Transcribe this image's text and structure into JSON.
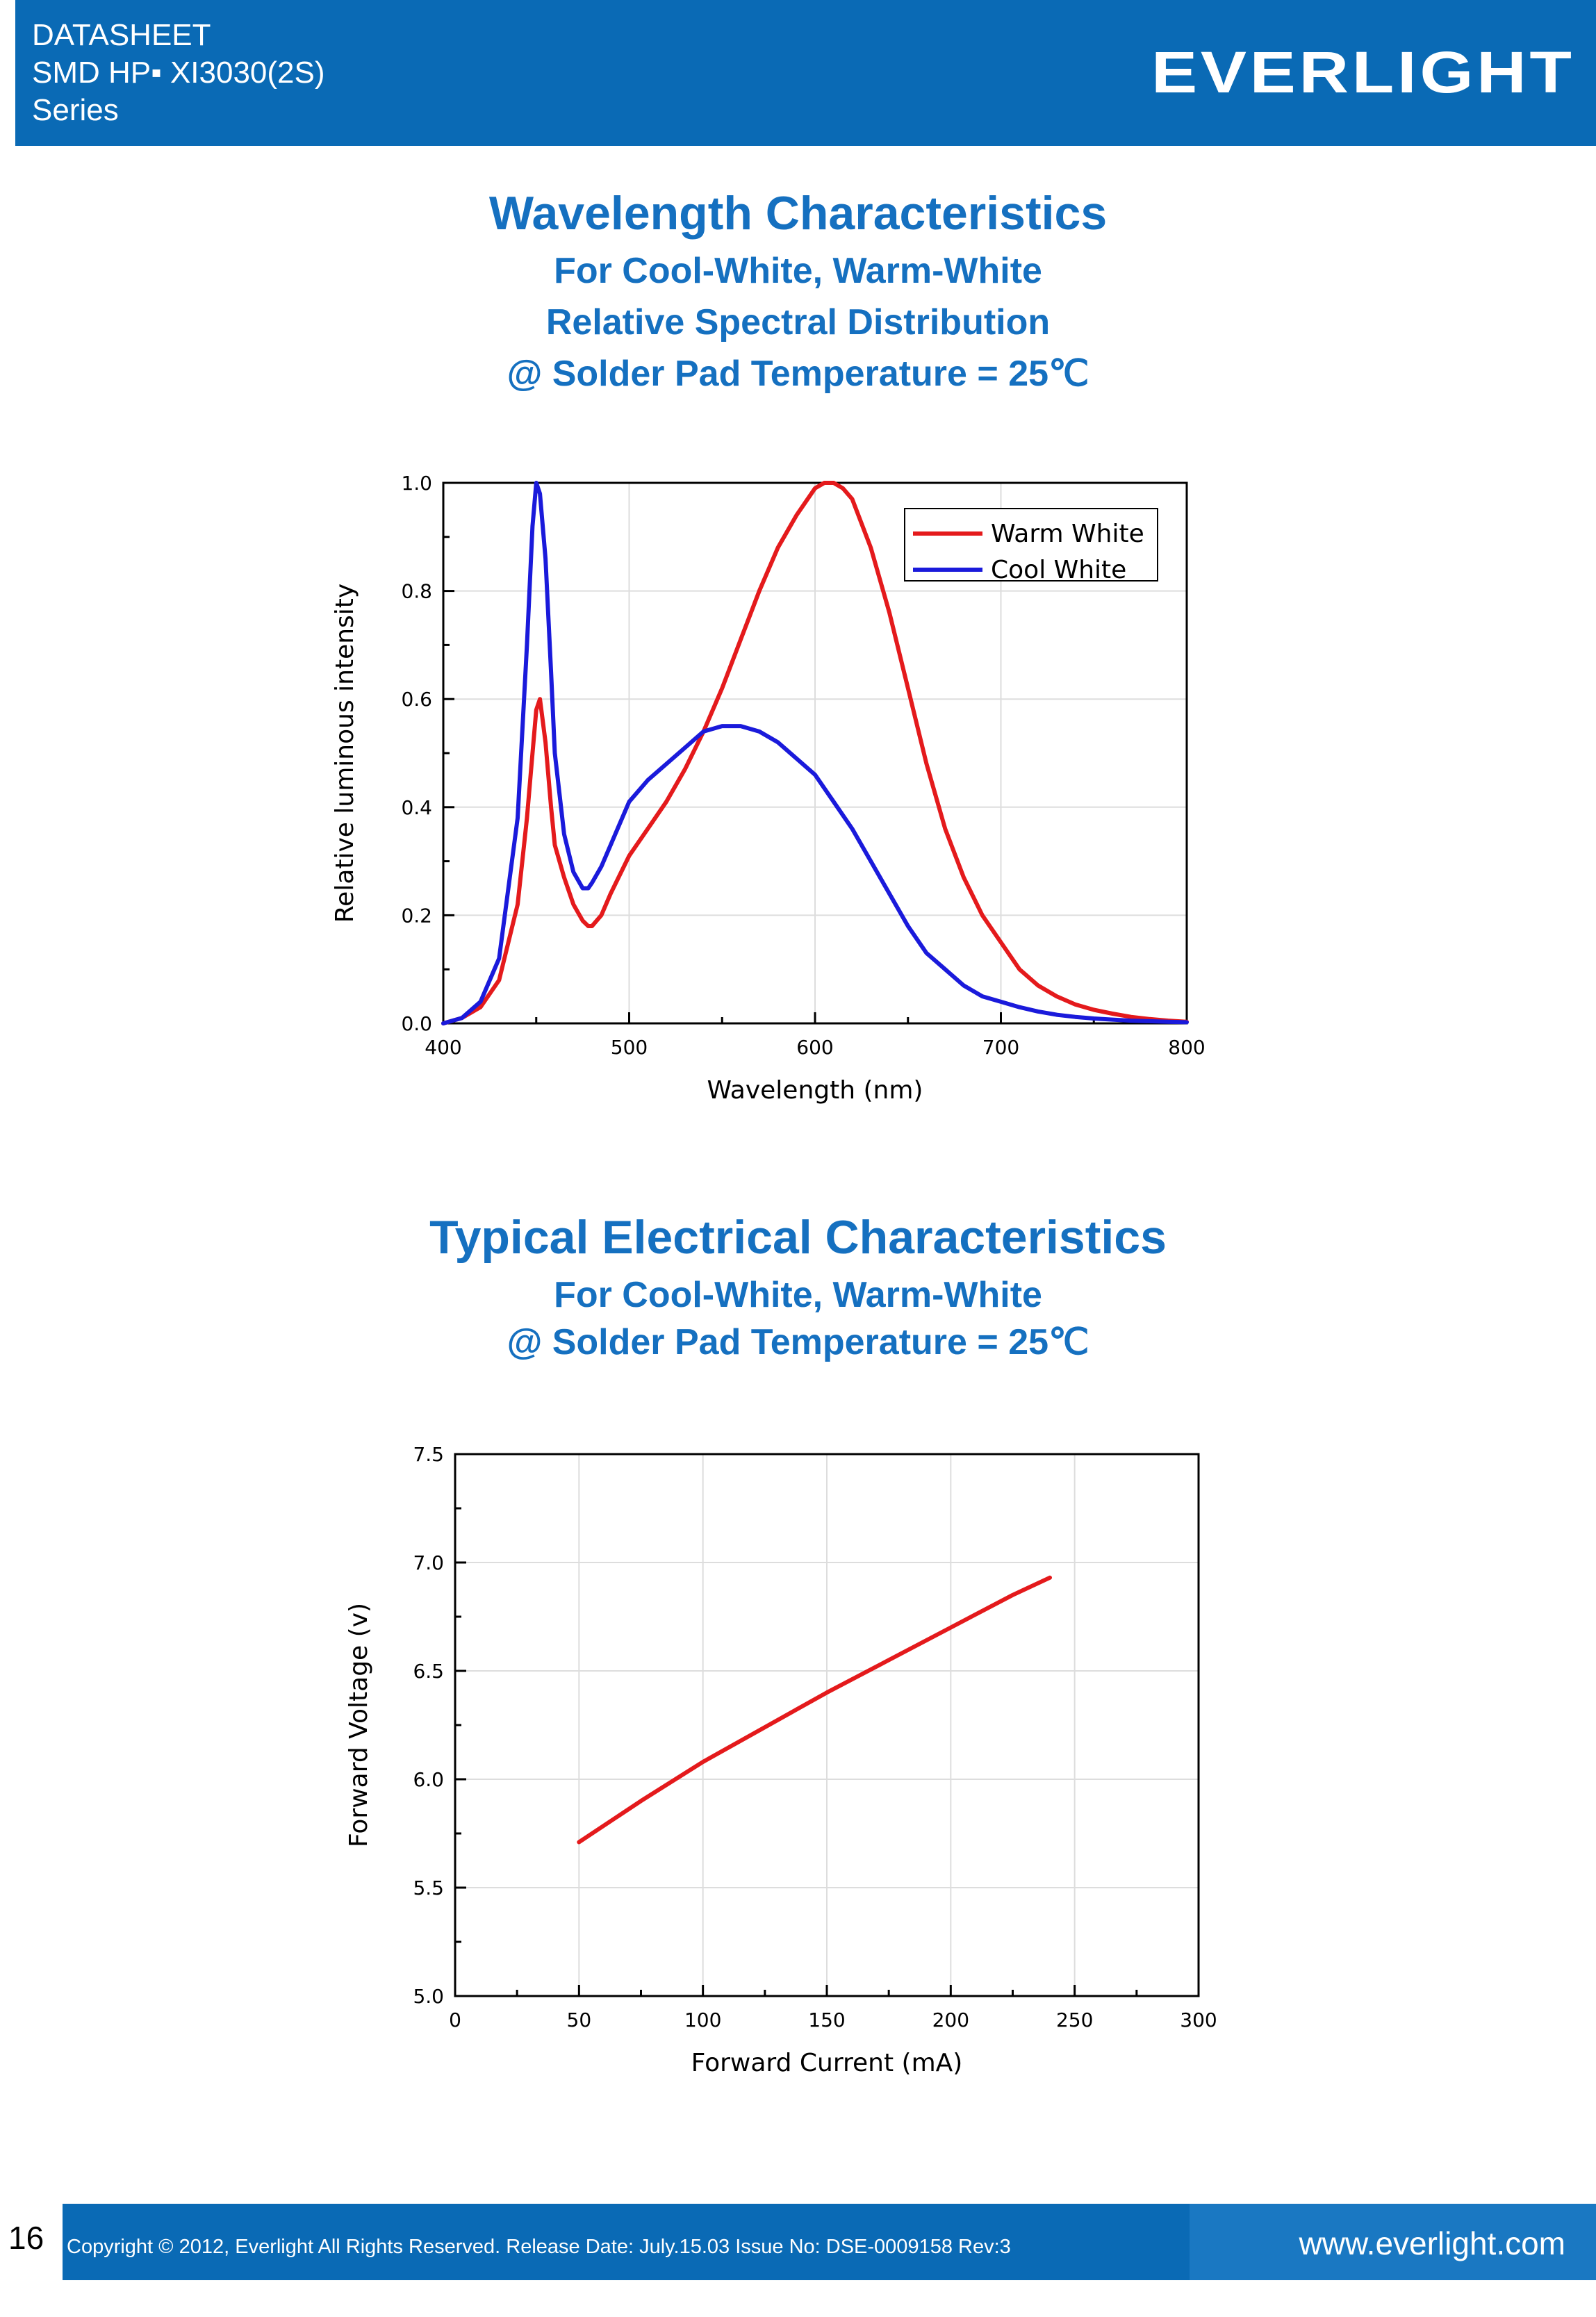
{
  "header": {
    "line1": "DATASHEET",
    "line2": "SMD HP▪ XI3030(2S)",
    "line3": "Series",
    "logo": "EVERLIGHT",
    "bg_color": "#0a6ab5"
  },
  "section1": {
    "title": "Wavelength Characteristics",
    "subtitle1": "For Cool-White, Warm-White",
    "subtitle2": "Relative Spectral Distribution",
    "subtitle3": "@ Solder Pad Temperature = 25℃"
  },
  "section2": {
    "title": "Typical Electrical Characteristics",
    "subtitle1": "For Cool-White, Warm-White",
    "subtitle2": "@ Solder Pad Temperature = 25℃"
  },
  "chart_data": [
    {
      "type": "line",
      "xlabel": "Wavelength (nm)",
      "ylabel": "Relative  luminous  intensity",
      "xlim": [
        400,
        800
      ],
      "ylim": [
        0.0,
        1.0
      ],
      "xticks": [
        "400",
        "500",
        "600",
        "700",
        "800"
      ],
      "yticks": [
        "0.0",
        "0.2",
        "0.4",
        "0.6",
        "0.8",
        "1.0"
      ],
      "grid": true,
      "legend_position": "top-right",
      "series": [
        {
          "name": "Warm White",
          "color": "#e41a1c",
          "x": [
            400,
            410,
            420,
            430,
            440,
            445,
            448,
            450,
            452,
            455,
            458,
            460,
            465,
            470,
            475,
            478,
            480,
            485,
            490,
            500,
            510,
            520,
            530,
            540,
            550,
            560,
            570,
            580,
            590,
            600,
            605,
            610,
            615,
            620,
            630,
            640,
            650,
            660,
            670,
            680,
            690,
            700,
            710,
            720,
            730,
            740,
            750,
            760,
            770,
            780,
            790,
            800
          ],
          "y": [
            0.0,
            0.01,
            0.03,
            0.08,
            0.22,
            0.38,
            0.5,
            0.58,
            0.6,
            0.52,
            0.4,
            0.33,
            0.27,
            0.22,
            0.19,
            0.18,
            0.18,
            0.2,
            0.24,
            0.31,
            0.36,
            0.41,
            0.47,
            0.54,
            0.62,
            0.71,
            0.8,
            0.88,
            0.94,
            0.99,
            1.0,
            1.0,
            0.99,
            0.97,
            0.88,
            0.76,
            0.62,
            0.48,
            0.36,
            0.27,
            0.2,
            0.15,
            0.1,
            0.07,
            0.05,
            0.035,
            0.025,
            0.018,
            0.012,
            0.008,
            0.005,
            0.003
          ]
        },
        {
          "name": "Cool  White",
          "color": "#1a1adb",
          "x": [
            400,
            410,
            420,
            430,
            440,
            445,
            448,
            450,
            452,
            455,
            458,
            460,
            465,
            470,
            475,
            478,
            480,
            485,
            490,
            500,
            510,
            520,
            530,
            540,
            550,
            560,
            570,
            580,
            590,
            600,
            610,
            620,
            630,
            640,
            650,
            660,
            670,
            680,
            690,
            700,
            710,
            720,
            730,
            740,
            750,
            760,
            770,
            780,
            790,
            800
          ],
          "y": [
            0.0,
            0.01,
            0.04,
            0.12,
            0.38,
            0.7,
            0.92,
            1.0,
            0.98,
            0.86,
            0.65,
            0.5,
            0.35,
            0.28,
            0.25,
            0.25,
            0.26,
            0.29,
            0.33,
            0.41,
            0.45,
            0.48,
            0.51,
            0.54,
            0.55,
            0.55,
            0.54,
            0.52,
            0.49,
            0.46,
            0.41,
            0.36,
            0.3,
            0.24,
            0.18,
            0.13,
            0.1,
            0.07,
            0.05,
            0.04,
            0.03,
            0.022,
            0.016,
            0.012,
            0.009,
            0.007,
            0.005,
            0.004,
            0.003,
            0.002
          ]
        }
      ]
    },
    {
      "type": "line",
      "xlabel": "Forward Current (mA)",
      "ylabel": "Forward Voltage (v)",
      "xlim": [
        0,
        300
      ],
      "ylim": [
        5.0,
        7.5
      ],
      "xticks": [
        "0",
        "50",
        "100",
        "150",
        "200",
        "250",
        "300"
      ],
      "yticks": [
        "5.0",
        "5.5",
        "6.0",
        "6.5",
        "7.0",
        "7.5"
      ],
      "grid": true,
      "series": [
        {
          "color": "#e41a1c",
          "x": [
            50,
            75,
            100,
            125,
            150,
            175,
            200,
            225,
            240
          ],
          "y": [
            5.71,
            5.9,
            6.08,
            6.24,
            6.4,
            6.55,
            6.7,
            6.85,
            6.93
          ]
        }
      ]
    }
  ],
  "footer": {
    "page": "16",
    "copyright": "Copyright © 2012, Everlight All Rights Reserved. Release Date: July.15.03 Issue No: DSE-0009158 Rev:3",
    "url": "www.everlight.com"
  }
}
